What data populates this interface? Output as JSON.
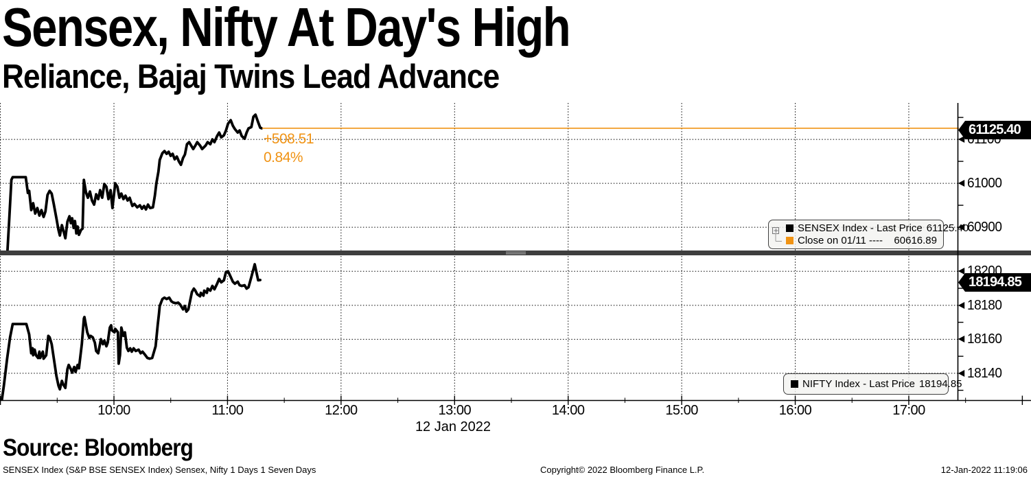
{
  "header": {
    "title": "Sensex, Nifty At Day's High",
    "subtitle": "Reliance, Bajaj Twins Lead Advance"
  },
  "annotation": {
    "change": "+508.51",
    "percent": "0.84%"
  },
  "tags": {
    "sensex": "61125.40",
    "nifty": "18194.85"
  },
  "legend_top": {
    "rows": [
      {
        "label": "SENSEX Index - Last Price",
        "value": "61125.40",
        "swatch": "#000000"
      },
      {
        "label": "Close on 01/11 ----",
        "value": "60616.89",
        "swatch": "#F09314"
      }
    ]
  },
  "legend_bottom": {
    "rows": [
      {
        "label": "NIFTY Index - Last Price",
        "value": "18194.85",
        "swatch": "#000000"
      }
    ]
  },
  "x_axis": {
    "labels": [
      "10:00",
      "11:00",
      "12:00",
      "13:00",
      "14:00",
      "15:00",
      "16:00",
      "17:00"
    ],
    "minutes": [
      60,
      120,
      180,
      240,
      300,
      360,
      420,
      480
    ],
    "date": "12 Jan 2022"
  },
  "source_line": "Source: Bloomberg",
  "footer": {
    "left": "SENSEX Index (S&P BSE SENSEX Index) Sensex, Nifty 1 Days 1 Seven Days",
    "copyright": "Copyright© 2022 Bloomberg Finance L.P.",
    "timestamp": "12-Jan-2022 11:19:06"
  },
  "colors": {
    "orange": "#F09314",
    "series": "#000000",
    "separator": "#3E3E3E",
    "grid": "#000000",
    "legend_bg": "#F2F2F0",
    "tag_bg": "#000000",
    "tag_text": "#FFFFFF"
  },
  "chart_data": {
    "type": "line",
    "title": "Sensex, Nifty At Day's High",
    "x_unit": "minutes after 09:00 IST, 12 Jan 2022",
    "grid": "dotted",
    "legend_position": "right-inside",
    "panels": [
      {
        "id": "top",
        "index_name": "SENSEX Index",
        "ylim": [
          60847,
          61183
        ],
        "yticks": [
          61100,
          61000,
          60900
        ],
        "yticks_minor": [
          61150,
          61050,
          60950
        ],
        "last_price": 61125.4,
        "prev_close_label": "Close on 01/11",
        "prev_close": 60616.89,
        "change": 508.51,
        "change_pct": 0.84
      },
      {
        "id": "bottom",
        "index_name": "NIFTY Index",
        "ylim": [
          18124,
          18209
        ],
        "yticks": [
          18200,
          18180,
          18160,
          18140
        ],
        "yticks_minor": [
          18190,
          18170,
          18150,
          18130
        ],
        "last_price": 18194.85
      }
    ],
    "series": [
      {
        "name": "SENSEX Index - Last Price",
        "panel": "top",
        "color": "#000000",
        "points": [
          [
            3.6,
            60835.9
          ],
          [
            4.7,
            60921.9
          ],
          [
            5.8,
            61007.8
          ],
          [
            6.5,
            61014.1
          ],
          [
            13.4,
            61014.1
          ],
          [
            14.5,
            60978.1
          ],
          [
            15.2,
            60982.8
          ],
          [
            16.3,
            60939.1
          ],
          [
            17.3,
            60954.7
          ],
          [
            18.4,
            60931.3
          ],
          [
            19.5,
            60943.8
          ],
          [
            20.6,
            60926.6
          ],
          [
            21.7,
            60939.1
          ],
          [
            22.8,
            60923.4
          ],
          [
            23.8,
            60935.9
          ],
          [
            24.9,
            60973.4
          ],
          [
            26,
            60982.8
          ],
          [
            27.1,
            60976.6
          ],
          [
            28.2,
            60953.1
          ],
          [
            29.6,
            60920.3
          ],
          [
            30.7,
            60893.8
          ],
          [
            31.4,
            60881.3
          ],
          [
            32.5,
            60904.7
          ],
          [
            33.6,
            60887.5
          ],
          [
            34.3,
            60875
          ],
          [
            35.4,
            60912.5
          ],
          [
            36.5,
            60925
          ],
          [
            37.2,
            60909.4
          ],
          [
            37.9,
            60920.3
          ],
          [
            38.7,
            60898.4
          ],
          [
            39.4,
            60914.1
          ],
          [
            40.1,
            60885.9
          ],
          [
            40.8,
            60901.6
          ],
          [
            41.5,
            60882.8
          ],
          [
            42.6,
            60893.8
          ],
          [
            43.4,
            60896.9
          ],
          [
            44.1,
            61007.8
          ],
          [
            45.2,
            60979.7
          ],
          [
            46.2,
            60967.2
          ],
          [
            47.3,
            60981.3
          ],
          [
            48.4,
            60960.9
          ],
          [
            49.5,
            60951.6
          ],
          [
            50.6,
            60975
          ],
          [
            51.7,
            60964.1
          ],
          [
            52.7,
            60984.4
          ],
          [
            53.8,
            60967.2
          ],
          [
            54.9,
            60998.4
          ],
          [
            56,
            60992.2
          ],
          [
            57.1,
            60964.1
          ],
          [
            58.2,
            60984.4
          ],
          [
            59.2,
            60943.8
          ],
          [
            60.7,
            61000
          ],
          [
            61.8,
            60992.2
          ],
          [
            62.9,
            60967.2
          ],
          [
            63.9,
            60976.6
          ],
          [
            65,
            60964.1
          ],
          [
            66.1,
            60971.9
          ],
          [
            67.2,
            60960.9
          ],
          [
            68.3,
            60967.2
          ],
          [
            69.7,
            60948.4
          ],
          [
            70.8,
            60953.1
          ],
          [
            72.3,
            60945.3
          ],
          [
            73.7,
            60950
          ],
          [
            74.8,
            60942.2
          ],
          [
            75.9,
            60948.4
          ],
          [
            76.9,
            60940.6
          ],
          [
            78,
            60951.6
          ],
          [
            79.1,
            60943.8
          ],
          [
            80.6,
            60945.3
          ],
          [
            81.6,
            60971.9
          ],
          [
            82.4,
            61000
          ],
          [
            83.5,
            61026.6
          ],
          [
            84.2,
            61053.1
          ],
          [
            85.6,
            61068.8
          ],
          [
            86.7,
            61073.4
          ],
          [
            87.8,
            61067.2
          ],
          [
            88.9,
            61071.9
          ],
          [
            90,
            61062.5
          ],
          [
            91,
            61067.2
          ],
          [
            92.1,
            61054.7
          ],
          [
            93.2,
            61060.9
          ],
          [
            94.3,
            61050
          ],
          [
            95.4,
            61042.2
          ],
          [
            96.5,
            61057.8
          ],
          [
            97.5,
            61065.6
          ],
          [
            98.6,
            61089.1
          ],
          [
            99.7,
            61093.8
          ],
          [
            100.8,
            61085.9
          ],
          [
            101.9,
            61078.1
          ],
          [
            103,
            61085.9
          ],
          [
            104,
            61093.8
          ],
          [
            105.5,
            61085.9
          ],
          [
            106.6,
            61078.1
          ],
          [
            108.4,
            61085.9
          ],
          [
            109.5,
            61093.8
          ],
          [
            110.9,
            61089.1
          ],
          [
            112,
            61100
          ],
          [
            113.1,
            61093.8
          ],
          [
            114.5,
            61107.8
          ],
          [
            115.6,
            61115.6
          ],
          [
            116.7,
            61104.7
          ],
          [
            118.1,
            61109.4
          ],
          [
            119.2,
            61120.3
          ],
          [
            120.3,
            61135.9
          ],
          [
            121.7,
            61143.8
          ],
          [
            122.8,
            61131.3
          ],
          [
            123.9,
            61123.4
          ],
          [
            125.4,
            61115.6
          ],
          [
            126.4,
            61120.3
          ],
          [
            127.5,
            61107.8
          ],
          [
            129,
            61101.6
          ],
          [
            130.1,
            61115.6
          ],
          [
            131.1,
            61125
          ],
          [
            132.6,
            61128.1
          ],
          [
            133.7,
            61151.6
          ],
          [
            134.8,
            61156.3
          ],
          [
            136.2,
            61139.1
          ],
          [
            137.3,
            61126.6
          ],
          [
            138,
            61125.4
          ]
        ]
      },
      {
        "name": "NIFTY Index - Last Price",
        "panel": "bottom",
        "color": "#000000",
        "points": [
          [
            0.7,
            18123.7
          ],
          [
            1.8,
            18132.7
          ],
          [
            3.6,
            18149
          ],
          [
            5.1,
            18161.2
          ],
          [
            6.5,
            18169
          ],
          [
            13.7,
            18169
          ],
          [
            15.2,
            18162.9
          ],
          [
            16.3,
            18151.8
          ],
          [
            17,
            18154.7
          ],
          [
            17.3,
            18150.6
          ],
          [
            18.1,
            18153.9
          ],
          [
            18.8,
            18150.6
          ],
          [
            19.9,
            18149
          ],
          [
            20.6,
            18152.7
          ],
          [
            21,
            18149
          ],
          [
            22.4,
            18152.7
          ],
          [
            22.8,
            18148.6
          ],
          [
            24.2,
            18150.6
          ],
          [
            25.3,
            18162
          ],
          [
            26,
            18161.2
          ],
          [
            27.1,
            18157.1
          ],
          [
            28.2,
            18149
          ],
          [
            29.6,
            18138.4
          ],
          [
            30.7,
            18132.7
          ],
          [
            31.4,
            18130.6
          ],
          [
            32.5,
            18135.5
          ],
          [
            33.2,
            18133.5
          ],
          [
            34.3,
            18131.4
          ],
          [
            35.4,
            18142.4
          ],
          [
            36.1,
            18144.9
          ],
          [
            37.2,
            18142.4
          ],
          [
            37.9,
            18140.4
          ],
          [
            39,
            18143.7
          ],
          [
            39.7,
            18140.8
          ],
          [
            40.8,
            18144.9
          ],
          [
            41.5,
            18142.9
          ],
          [
            43,
            18157.1
          ],
          [
            44.1,
            18172.2
          ],
          [
            44.4,
            18173.1
          ],
          [
            45.9,
            18164.1
          ],
          [
            47,
            18160.8
          ],
          [
            47.7,
            18162
          ],
          [
            48.8,
            18161.2
          ],
          [
            49.9,
            18158
          ],
          [
            50.6,
            18153.1
          ],
          [
            51.7,
            18151.8
          ],
          [
            53.1,
            18160
          ],
          [
            54.2,
            18157.1
          ],
          [
            54.9,
            18159.2
          ],
          [
            56,
            18155.9
          ],
          [
            56.7,
            18158
          ],
          [
            57.8,
            18166.9
          ],
          [
            58.5,
            18168.2
          ],
          [
            58.9,
            18165.3
          ],
          [
            60.3,
            18164.1
          ],
          [
            60.7,
            18166.1
          ],
          [
            62.1,
            18164.1
          ],
          [
            62.5,
            18145.7
          ],
          [
            63.2,
            18150.6
          ],
          [
            63.9,
            18166.9
          ],
          [
            65,
            18162
          ],
          [
            65.8,
            18164.1
          ],
          [
            66.8,
            18155.1
          ],
          [
            67.6,
            18153.1
          ],
          [
            68.6,
            18154.7
          ],
          [
            69.4,
            18152.7
          ],
          [
            70.4,
            18154.7
          ],
          [
            71.5,
            18153.1
          ],
          [
            73,
            18153.9
          ],
          [
            74.1,
            18151.8
          ],
          [
            75.1,
            18152.7
          ],
          [
            76.6,
            18150.6
          ],
          [
            77.7,
            18149
          ],
          [
            78.8,
            18148.6
          ],
          [
            80.2,
            18149
          ],
          [
            82,
            18155.9
          ],
          [
            83.1,
            18168.2
          ],
          [
            83.8,
            18175.1
          ],
          [
            84.2,
            18179.6
          ],
          [
            85.6,
            18183.7
          ],
          [
            86.7,
            18184.5
          ],
          [
            87.8,
            18183.7
          ],
          [
            89.2,
            18184.5
          ],
          [
            90.3,
            18182.4
          ],
          [
            91.4,
            18181.6
          ],
          [
            92.8,
            18181.2
          ],
          [
            93.9,
            18181.6
          ],
          [
            95,
            18180.4
          ],
          [
            96.5,
            18177.6
          ],
          [
            97.5,
            18179.6
          ],
          [
            98.3,
            18176.3
          ],
          [
            99.3,
            18177.6
          ],
          [
            101.2,
            18187.8
          ],
          [
            102.2,
            18189.8
          ],
          [
            103,
            18188.6
          ],
          [
            104,
            18186.5
          ],
          [
            105.5,
            18185.3
          ],
          [
            105.9,
            18187.3
          ],
          [
            107.3,
            18185.7
          ],
          [
            107.7,
            18188.6
          ],
          [
            109.1,
            18187.3
          ],
          [
            109.5,
            18189.8
          ],
          [
            110.9,
            18188.6
          ],
          [
            112,
            18191.4
          ],
          [
            113.1,
            18189.4
          ],
          [
            114.5,
            18192.7
          ],
          [
            115.6,
            18195.5
          ],
          [
            116.7,
            18193.5
          ],
          [
            118.1,
            18194.7
          ],
          [
            119.2,
            18199.6
          ],
          [
            120.3,
            18200
          ],
          [
            121.7,
            18196.7
          ],
          [
            122.8,
            18193.9
          ],
          [
            123.9,
            18192.7
          ],
          [
            125.4,
            18193.9
          ],
          [
            126.4,
            18191.8
          ],
          [
            127.5,
            18191.4
          ],
          [
            129,
            18191.8
          ],
          [
            130.1,
            18189.8
          ],
          [
            131.1,
            18190.6
          ],
          [
            132.6,
            18196.7
          ],
          [
            134.4,
            18204.1
          ],
          [
            134.8,
            18202
          ],
          [
            136.2,
            18194.7
          ],
          [
            137.3,
            18194.85
          ]
        ]
      }
    ]
  }
}
